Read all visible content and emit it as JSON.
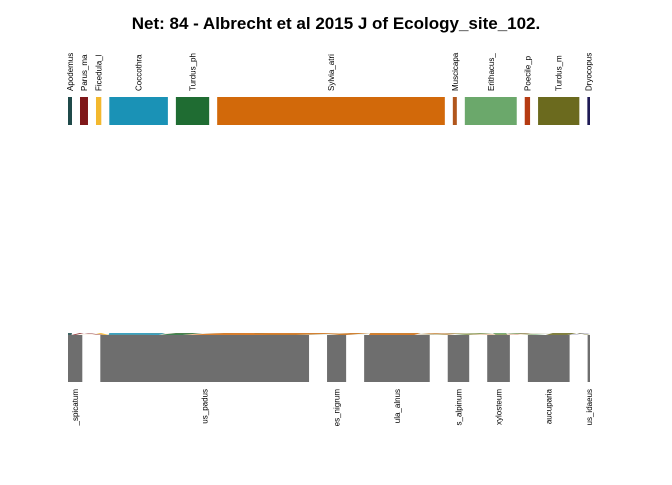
{
  "chart_data": {
    "type": "bipartite",
    "title": "Net: 84 - Albrecht et al 2015 J of Ecology_site_102.",
    "higher_level": [
      {
        "label": "Apodemus",
        "color": "#1F4A4A"
      },
      {
        "label": "Parus_ma",
        "color": "#7F1719"
      },
      {
        "label": "Ficedula_l",
        "color": "#F3B82E"
      },
      {
        "label": "Coccothra",
        "color": "#1A92B6"
      },
      {
        "label": "Turdus_ph",
        "color": "#1F6C32"
      },
      {
        "label": "Sylvia_atri",
        "color": "#D2690A"
      },
      {
        "label": "Muscicapa",
        "color": "#B1561C"
      },
      {
        "label": "Erithacus_",
        "color": "#6BA86B"
      },
      {
        "label": "Poecile_p",
        "color": "#B53B12"
      },
      {
        "label": "Turdus_m",
        "color": "#6B6A1E"
      },
      {
        "label": "Dryocopus",
        "color": "#1E1A55"
      }
    ],
    "lower_level": [
      {
        "label": "_spicatum"
      },
      {
        "label": "us_padus"
      },
      {
        "label": "es_nigrum"
      },
      {
        "label": "ula_alnus"
      },
      {
        "label": "s_alpinum"
      },
      {
        "label": "xylosteum"
      },
      {
        "label": "aucuparia"
      },
      {
        "label": "us_idaeus"
      }
    ],
    "lower_color": "#6E6E6E",
    "links": [
      {
        "from": "Apodemus",
        "to": "_spicatum",
        "weight": 3
      },
      {
        "from": "Parus_ma",
        "to": "_spicatum",
        "weight": 3
      },
      {
        "from": "Parus_ma",
        "to": "us_padus",
        "weight": 3
      },
      {
        "from": "Ficedula_l",
        "to": "us_padus",
        "weight": 4
      },
      {
        "from": "Coccothra",
        "to": "us_padus",
        "weight": 42
      },
      {
        "from": "Coccothra",
        "to": "ula_alnus",
        "weight": 2
      },
      {
        "from": "Turdus_ph",
        "to": "us_padus",
        "weight": 20
      },
      {
        "from": "Turdus_ph",
        "to": "es_nigrum",
        "weight": 1
      },
      {
        "from": "Turdus_ph",
        "to": "ula_alnus",
        "weight": 2
      },
      {
        "from": "Turdus_ph",
        "to": "xylosteum",
        "weight": 1
      },
      {
        "from": "Turdus_ph",
        "to": "aucuparia",
        "weight": 1
      },
      {
        "from": "Sylvia_atri",
        "to": "_spicatum",
        "weight": 5
      },
      {
        "from": "Sylvia_atri",
        "to": "us_padus",
        "weight": 95
      },
      {
        "from": "Sylvia_atri",
        "to": "es_nigrum",
        "weight": 15
      },
      {
        "from": "Sylvia_atri",
        "to": "ula_alnus",
        "weight": 38
      },
      {
        "from": "Sylvia_atri",
        "to": "s_alpinum",
        "weight": 6
      },
      {
        "from": "Sylvia_atri",
        "to": "xylosteum",
        "weight": 6
      },
      {
        "from": "Sylvia_atri",
        "to": "aucuparia",
        "weight": 6
      },
      {
        "from": "Muscicapa",
        "to": "ula_alnus",
        "weight": 3
      },
      {
        "from": "Erithacus_",
        "to": "us_padus",
        "weight": 4
      },
      {
        "from": "Erithacus_",
        "to": "_spicatum",
        "weight": 1
      },
      {
        "from": "Erithacus_",
        "to": "ula_alnus",
        "weight": 6
      },
      {
        "from": "Erithacus_",
        "to": "s_alpinum",
        "weight": 10
      },
      {
        "from": "Erithacus_",
        "to": "xylosteum",
        "weight": 10
      },
      {
        "from": "Erithacus_",
        "to": "aucuparia",
        "weight": 8
      },
      {
        "from": "Poecile_p",
        "to": "us_padus",
        "weight": 1
      },
      {
        "from": "Poecile_p",
        "to": "ula_alnus",
        "weight": 1
      },
      {
        "from": "Poecile_p",
        "to": "xylosteum",
        "weight": 2
      },
      {
        "from": "Turdus_m",
        "to": "us_padus",
        "weight": 6
      },
      {
        "from": "Turdus_m",
        "to": "ula_alnus",
        "weight": 3
      },
      {
        "from": "Turdus_m",
        "to": "s_alpinum",
        "weight": 2
      },
      {
        "from": "Turdus_m",
        "to": "aucuparia",
        "weight": 18
      },
      {
        "from": "Turdus_m",
        "to": "us_idaeus",
        "weight": 2
      },
      {
        "from": "Dryocopus",
        "to": "aucuparia",
        "weight": 2
      }
    ]
  }
}
